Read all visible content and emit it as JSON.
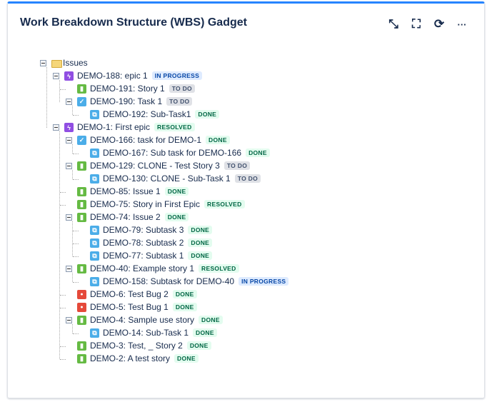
{
  "gadget": {
    "title": "Work Breakdown Structure (WBS) Gadget",
    "actions": [
      {
        "name": "minimize-icon",
        "glyph": "⤡"
      },
      {
        "name": "fullscreen-icon",
        "glyph": "⛶"
      },
      {
        "name": "refresh-icon",
        "glyph": "⟳"
      },
      {
        "name": "more-icon",
        "glyph": "···"
      }
    ]
  },
  "status_colors": {
    "IN PROGRESS": [
      "#deebff",
      "#0747a6"
    ],
    "TO DO": [
      "#dfe1e6",
      "#42526e"
    ],
    "DONE": [
      "#e3fcef",
      "#006644"
    ],
    "RESOLVED": [
      "#e3fcef",
      "#006644"
    ]
  },
  "type_colors": {
    "epic": "#904ee2",
    "story": "#65ba43",
    "task": "#4bade8",
    "subtask": "#4bade8",
    "bug": "#e5493a",
    "folder": "#f5d67a"
  },
  "tree": [
    {
      "depth": 0,
      "type": "folder",
      "label": "Issues",
      "status": "",
      "toggle": true
    },
    {
      "depth": 1,
      "type": "epic",
      "label": "DEMO-188: epic 1",
      "status": "IN PROGRESS",
      "toggle": true
    },
    {
      "depth": 2,
      "type": "story",
      "label": "DEMO-191: Story 1",
      "status": "TO DO",
      "toggle": false
    },
    {
      "depth": 2,
      "type": "task",
      "label": "DEMO-190: Task 1",
      "status": "TO DO",
      "toggle": true
    },
    {
      "depth": 3,
      "type": "subtask",
      "label": "DEMO-192: Sub-Task1",
      "status": "DONE",
      "toggle": false
    },
    {
      "depth": 1,
      "type": "epic",
      "label": "DEMO-1: First epic",
      "status": "RESOLVED",
      "toggle": true
    },
    {
      "depth": 2,
      "type": "task",
      "label": "DEMO-166: task for DEMO-1",
      "status": "DONE",
      "toggle": true
    },
    {
      "depth": 3,
      "type": "subtask",
      "label": "DEMO-167: Sub task for DEMO-166",
      "status": "DONE",
      "toggle": false
    },
    {
      "depth": 2,
      "type": "story",
      "label": "DEMO-129: CLONE - Test Story 3",
      "status": "TO DO",
      "toggle": true
    },
    {
      "depth": 3,
      "type": "subtask",
      "label": "DEMO-130: CLONE - Sub-Task 1",
      "status": "TO DO",
      "toggle": false
    },
    {
      "depth": 2,
      "type": "story",
      "label": "DEMO-85: Issue 1",
      "status": "DONE",
      "toggle": false
    },
    {
      "depth": 2,
      "type": "story",
      "label": "DEMO-75: Story in First Epic",
      "status": "RESOLVED",
      "toggle": false
    },
    {
      "depth": 2,
      "type": "story",
      "label": "DEMO-74: Issue 2",
      "status": "DONE",
      "toggle": true
    },
    {
      "depth": 3,
      "type": "subtask",
      "label": "DEMO-79: Subtask 3",
      "status": "DONE",
      "toggle": false
    },
    {
      "depth": 3,
      "type": "subtask",
      "label": "DEMO-78: Subtask 2",
      "status": "DONE",
      "toggle": false
    },
    {
      "depth": 3,
      "type": "subtask",
      "label": "DEMO-77: Subtask 1",
      "status": "DONE",
      "toggle": false
    },
    {
      "depth": 2,
      "type": "story",
      "label": "DEMO-40: Example story 1",
      "status": "RESOLVED",
      "toggle": true
    },
    {
      "depth": 3,
      "type": "subtask",
      "label": "DEMO-158: Subtask for DEMO-40",
      "status": "IN PROGRESS",
      "toggle": false
    },
    {
      "depth": 2,
      "type": "bug",
      "label": "DEMO-6: Test Bug 2",
      "status": "DONE",
      "toggle": false
    },
    {
      "depth": 2,
      "type": "bug",
      "label": "DEMO-5: Test Bug 1",
      "status": "DONE",
      "toggle": false
    },
    {
      "depth": 2,
      "type": "story",
      "label": "DEMO-4: Sample use story",
      "status": "DONE",
      "toggle": true
    },
    {
      "depth": 3,
      "type": "subtask",
      "label": "DEMO-14: Sub-Task 1",
      "status": "DONE",
      "toggle": false
    },
    {
      "depth": 2,
      "type": "story",
      "label": "DEMO-3: Test, _ Story 2",
      "status": "DONE",
      "toggle": false
    },
    {
      "depth": 2,
      "type": "story",
      "label": "DEMO-2: A test story",
      "status": "DONE",
      "toggle": false
    }
  ]
}
